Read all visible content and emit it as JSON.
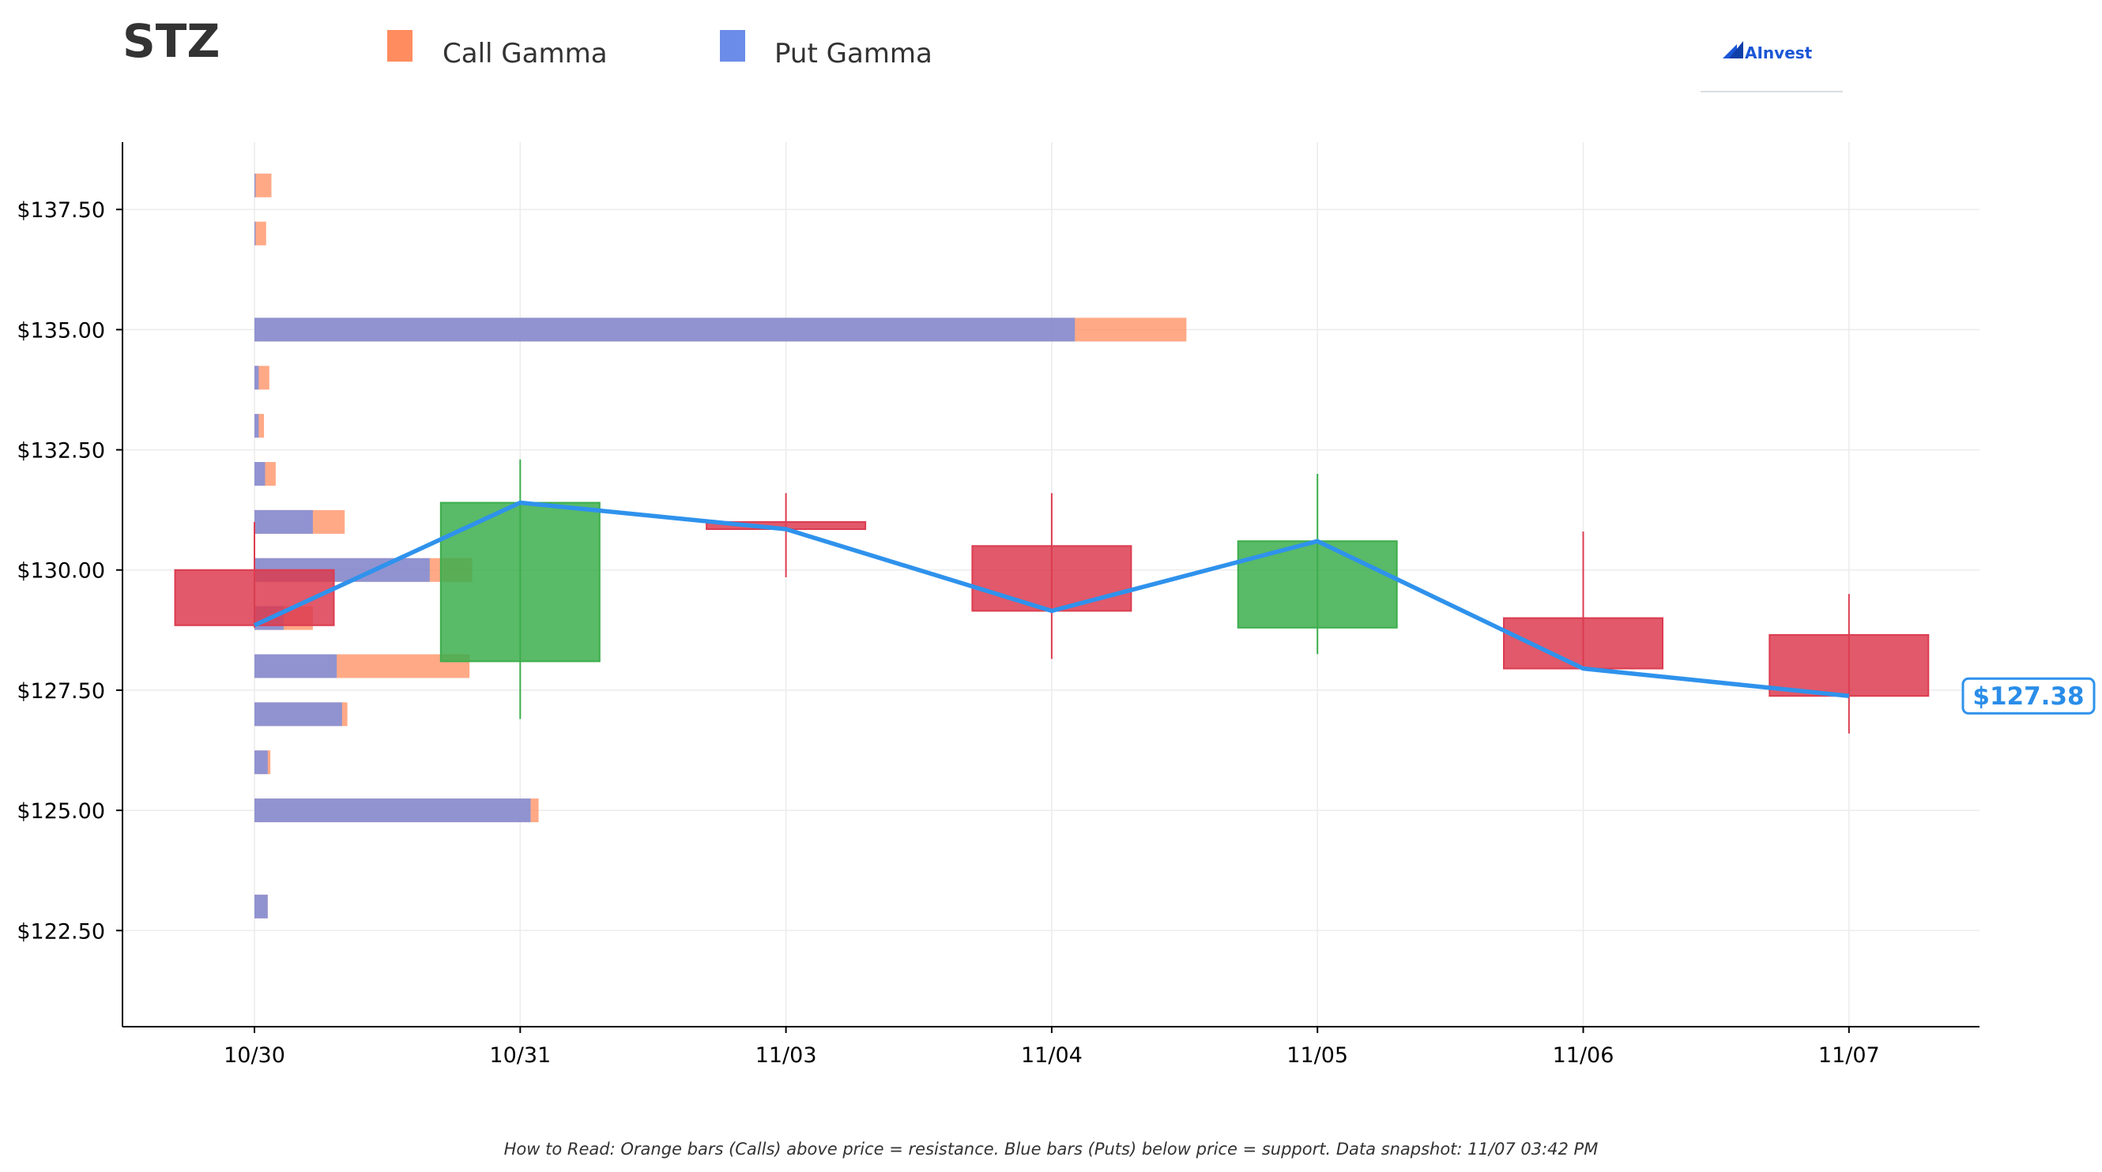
{
  "ticker": "STZ",
  "legend": {
    "call_label": "Call Gamma",
    "put_label": "Put Gamma"
  },
  "logo": {
    "text": "AInvest",
    "icon": "ainvest-logo-icon"
  },
  "footnote": "How to Read: Orange bars (Calls) above price = resistance. Blue bars (Puts) below price = support. Data snapshot: 11/07 03:42 PM",
  "last_price_label": "$127.38",
  "colors": {
    "call": "#ff8c5e",
    "put": "#6b8ce8",
    "up": "#3cae4c",
    "down": "#dc3c50",
    "price_line": "#2f92ec",
    "label_border": "#2f92ec"
  },
  "chart_data": {
    "type": "candlestick",
    "title": "STZ",
    "xlabel": "",
    "ylabel": "",
    "ylim": [
      120.5,
      138.9
    ],
    "yticks": [
      122.5,
      125.0,
      127.5,
      130.0,
      132.5,
      135.0,
      137.5
    ],
    "ytick_labels": [
      "$122.50",
      "$125.00",
      "$127.50",
      "$130.00",
      "$132.50",
      "$135.00",
      "$137.50"
    ],
    "grid": true,
    "legend_position": "top",
    "categories": [
      "10/30",
      "10/31",
      "11/03",
      "11/04",
      "11/05",
      "11/06",
      "11/07"
    ],
    "ohlc": [
      {
        "date": "10/30",
        "open": 130.0,
        "high": 131.0,
        "low": 128.8,
        "close": 128.85
      },
      {
        "date": "10/31",
        "open": 128.1,
        "high": 132.3,
        "low": 126.9,
        "close": 131.4
      },
      {
        "date": "11/03",
        "open": 131.0,
        "high": 131.6,
        "low": 129.85,
        "close": 130.85
      },
      {
        "date": "11/04",
        "open": 130.5,
        "high": 131.6,
        "low": 128.15,
        "close": 129.15
      },
      {
        "date": "11/05",
        "open": 128.8,
        "high": 132.0,
        "low": 128.25,
        "close": 130.6
      },
      {
        "date": "11/06",
        "open": 129.0,
        "high": 130.8,
        "low": 128.0,
        "close": 127.95
      },
      {
        "date": "11/07",
        "open": 128.65,
        "high": 129.5,
        "low": 126.6,
        "close": 127.38
      }
    ],
    "price_line": {
      "name": "Close",
      "values": [
        128.85,
        131.4,
        130.85,
        129.15,
        130.6,
        127.95,
        127.38
      ]
    },
    "gamma_bars": {
      "strikes": [
        123.0,
        125.0,
        126.0,
        127.0,
        128.0,
        129.0,
        130.0,
        131.0,
        132.0,
        133.0,
        134.0,
        135.0,
        137.0,
        138.0
      ],
      "put_gamma": [
        0.25,
        5.2,
        0.25,
        1.65,
        1.55,
        0.55,
        3.3,
        1.1,
        0.2,
        0.08,
        0.08,
        15.45,
        0.02,
        0.02
      ],
      "call_gamma": [
        0.0,
        0.15,
        0.05,
        0.1,
        2.5,
        0.55,
        0.8,
        0.6,
        0.2,
        0.1,
        0.2,
        2.1,
        0.2,
        0.3
      ]
    }
  }
}
